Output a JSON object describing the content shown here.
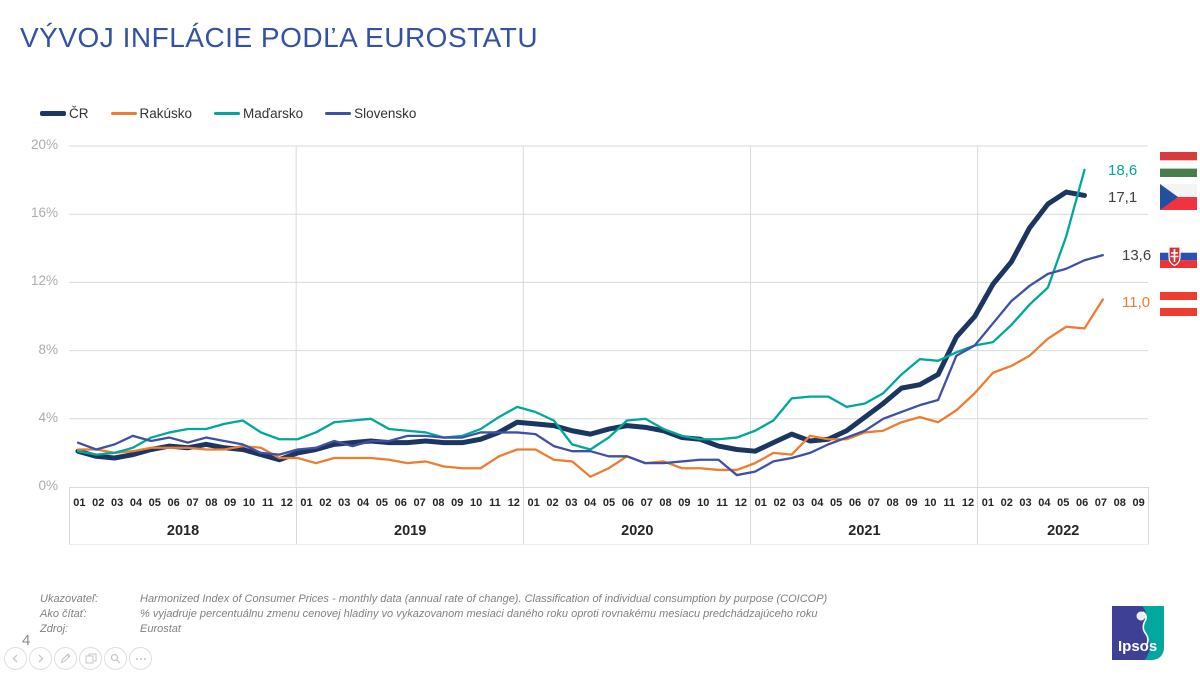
{
  "title": "VÝVOJ INFLÁCIE PODĽA EUROSTATU",
  "page_number": "4",
  "colors": {
    "title_blue": "#3452A4",
    "gridline": "#d9d9d9",
    "axis_tick_gray": "#ababab"
  },
  "chart_data": {
    "type": "line",
    "title": "",
    "ylabel": "",
    "xlabel": "",
    "ylim": [
      0,
      20
    ],
    "yticks": [
      "0%",
      "4%",
      "8%",
      "12%",
      "16%",
      "20%"
    ],
    "grid": true,
    "legend_position": "top-left",
    "x_years": [
      {
        "label": "2018",
        "months": [
          "01",
          "02",
          "03",
          "04",
          "05",
          "06",
          "07",
          "08",
          "09",
          "10",
          "11",
          "12"
        ]
      },
      {
        "label": "2019",
        "months": [
          "01",
          "02",
          "03",
          "04",
          "05",
          "06",
          "07",
          "08",
          "09",
          "10",
          "11",
          "12"
        ]
      },
      {
        "label": "2020",
        "months": [
          "01",
          "02",
          "03",
          "04",
          "05",
          "06",
          "07",
          "08",
          "09",
          "10",
          "11",
          "12"
        ]
      },
      {
        "label": "2021",
        "months": [
          "01",
          "02",
          "03",
          "04",
          "05",
          "06",
          "07",
          "08",
          "09",
          "10",
          "11",
          "12"
        ]
      },
      {
        "label": "2022",
        "months": [
          "01",
          "02",
          "03",
          "04",
          "05",
          "06",
          "07",
          "08",
          "09"
        ]
      }
    ],
    "series": [
      {
        "name": "ČR",
        "color": "#1B3660",
        "width": 5,
        "values": [
          2.1,
          1.8,
          1.7,
          1.9,
          2.2,
          2.4,
          2.3,
          2.5,
          2.3,
          2.2,
          1.9,
          1.6,
          2.0,
          2.2,
          2.5,
          2.6,
          2.7,
          2.6,
          2.6,
          2.7,
          2.6,
          2.6,
          2.8,
          3.2,
          3.8,
          3.7,
          3.6,
          3.3,
          3.1,
          3.4,
          3.6,
          3.5,
          3.3,
          2.9,
          2.8,
          2.4,
          2.2,
          2.1,
          2.6,
          3.1,
          2.7,
          2.8,
          3.3,
          4.1,
          4.9,
          5.8,
          6.0,
          6.6,
          8.8,
          10.0,
          11.9,
          13.2,
          15.2,
          16.6,
          17.3,
          17.1,
          null
        ]
      },
      {
        "name": "Rakúsko",
        "color": "#ED7D31",
        "width": 2.3,
        "values": [
          2.2,
          2.2,
          2.0,
          2.1,
          2.3,
          2.3,
          2.3,
          2.2,
          2.2,
          2.4,
          2.3,
          1.7,
          1.7,
          1.4,
          1.7,
          1.7,
          1.7,
          1.6,
          1.4,
          1.5,
          1.2,
          1.1,
          1.1,
          1.8,
          2.2,
          2.2,
          1.6,
          1.5,
          0.6,
          1.1,
          1.8,
          1.4,
          1.5,
          1.1,
          1.1,
          1.0,
          1.0,
          1.4,
          2.0,
          1.9,
          3.0,
          2.8,
          2.8,
          3.2,
          3.3,
          3.8,
          4.1,
          3.8,
          4.5,
          5.5,
          6.7,
          7.1,
          7.7,
          8.7,
          9.4,
          9.3,
          11.0
        ]
      },
      {
        "name": "Maďarsko",
        "color": "#00A79B",
        "width": 2.3,
        "values": [
          2.1,
          1.9,
          2.0,
          2.3,
          2.9,
          3.2,
          3.4,
          3.4,
          3.7,
          3.9,
          3.2,
          2.8,
          2.8,
          3.2,
          3.8,
          3.9,
          4.0,
          3.4,
          3.3,
          3.2,
          2.9,
          3.0,
          3.4,
          4.1,
          4.7,
          4.4,
          3.9,
          2.5,
          2.2,
          2.9,
          3.9,
          4.0,
          3.4,
          3.0,
          2.8,
          2.8,
          2.9,
          3.3,
          3.9,
          5.2,
          5.3,
          5.3,
          4.7,
          4.9,
          5.5,
          6.6,
          7.5,
          7.4,
          7.9,
          8.3,
          8.5,
          9.5,
          10.7,
          11.7,
          14.7,
          18.6,
          null
        ]
      },
      {
        "name": "Slovensko",
        "color": "#3F51A5",
        "width": 2.3,
        "values": [
          2.6,
          2.2,
          2.5,
          3.0,
          2.7,
          2.9,
          2.6,
          2.9,
          2.7,
          2.5,
          2.0,
          1.9,
          2.2,
          2.3,
          2.7,
          2.4,
          2.7,
          2.7,
          3.0,
          3.0,
          2.9,
          2.9,
          3.2,
          3.2,
          3.2,
          3.1,
          2.4,
          2.1,
          2.1,
          1.8,
          1.8,
          1.4,
          1.4,
          1.5,
          1.6,
          1.6,
          0.7,
          0.9,
          1.5,
          1.7,
          2.0,
          2.5,
          2.9,
          3.3,
          4.0,
          4.4,
          4.8,
          5.1,
          7.7,
          8.3,
          9.6,
          10.9,
          11.8,
          12.5,
          12.8,
          13.3,
          13.6
        ]
      }
    ],
    "end_labels": [
      {
        "text": "18,6",
        "color": "#00A79B",
        "country": "Maďarsko"
      },
      {
        "text": "17,1",
        "color": "#404040",
        "country": "ČR"
      },
      {
        "text": "13,6",
        "color": "#404040",
        "country": "Slovensko"
      },
      {
        "text": "11,0",
        "color": "#ED7D31",
        "country": "Rakúsko"
      }
    ]
  },
  "footer": {
    "rows": [
      {
        "label": "Ukazovateľ:",
        "text": "Harmonized Index of Consumer Prices - monthly data (annual rate of change). Classification of individual consumption by purpose (COICOP)"
      },
      {
        "label": "Ako čítať:",
        "text": "% vyjadruje percentuálnu zmenu cenovej hladiny vo vykazovanom mesiaci daného roku oproti rovnakému mesiacu predchádzajúceho roku"
      },
      {
        "label": "Zdroj:",
        "text": "Eurostat"
      }
    ]
  },
  "nav_icons": [
    "previous",
    "next",
    "edit",
    "slides",
    "zoom",
    "more"
  ],
  "logo_text": "Ipsos"
}
